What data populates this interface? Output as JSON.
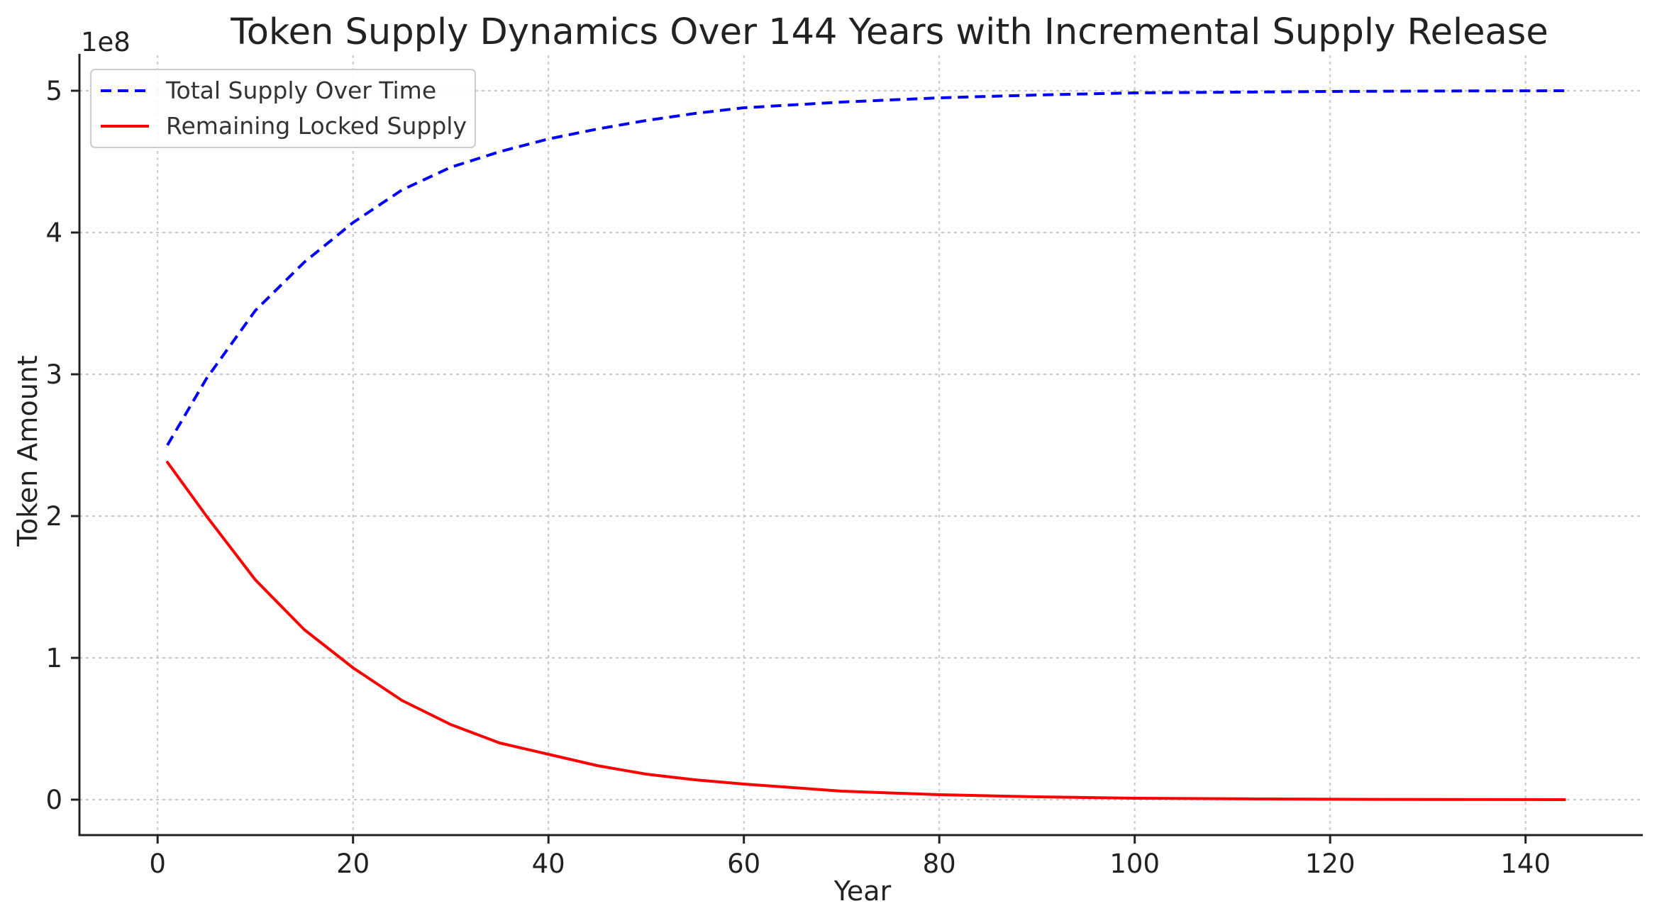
{
  "chart_data": {
    "type": "line",
    "title": "Token Supply Dynamics Over 144 Years with Incremental Supply Release",
    "xlabel": "Year",
    "ylabel": "Token Amount",
    "y_offset_label": "1e8",
    "xlim": [
      -8,
      152
    ],
    "ylim": [
      -0.25,
      5.25
    ],
    "x_ticks": [
      0,
      20,
      40,
      60,
      80,
      100,
      120,
      140
    ],
    "y_ticks": [
      0,
      1,
      2,
      3,
      4,
      5
    ],
    "grid": true,
    "legend_position": "top-left",
    "x": [
      1,
      5,
      10,
      15,
      20,
      25,
      30,
      35,
      40,
      45,
      50,
      55,
      60,
      70,
      80,
      90,
      100,
      110,
      120,
      130,
      144
    ],
    "series": [
      {
        "name": "Total Supply Over Time",
        "color": "#0000ff",
        "style": "dashed",
        "values": [
          2.5,
          2.97,
          3.45,
          3.79,
          4.07,
          4.3,
          4.46,
          4.57,
          4.66,
          4.73,
          4.79,
          4.84,
          4.88,
          4.92,
          4.95,
          4.97,
          4.985,
          4.99,
          4.995,
          4.998,
          5.0
        ]
      },
      {
        "name": "Remaining Locked Supply",
        "color": "#ff0000",
        "style": "solid",
        "values": [
          2.38,
          2.0,
          1.55,
          1.2,
          0.93,
          0.7,
          0.53,
          0.4,
          0.32,
          0.24,
          0.18,
          0.14,
          0.11,
          0.06,
          0.035,
          0.02,
          0.01,
          0.006,
          0.003,
          0.0015,
          0.0
        ]
      }
    ]
  }
}
